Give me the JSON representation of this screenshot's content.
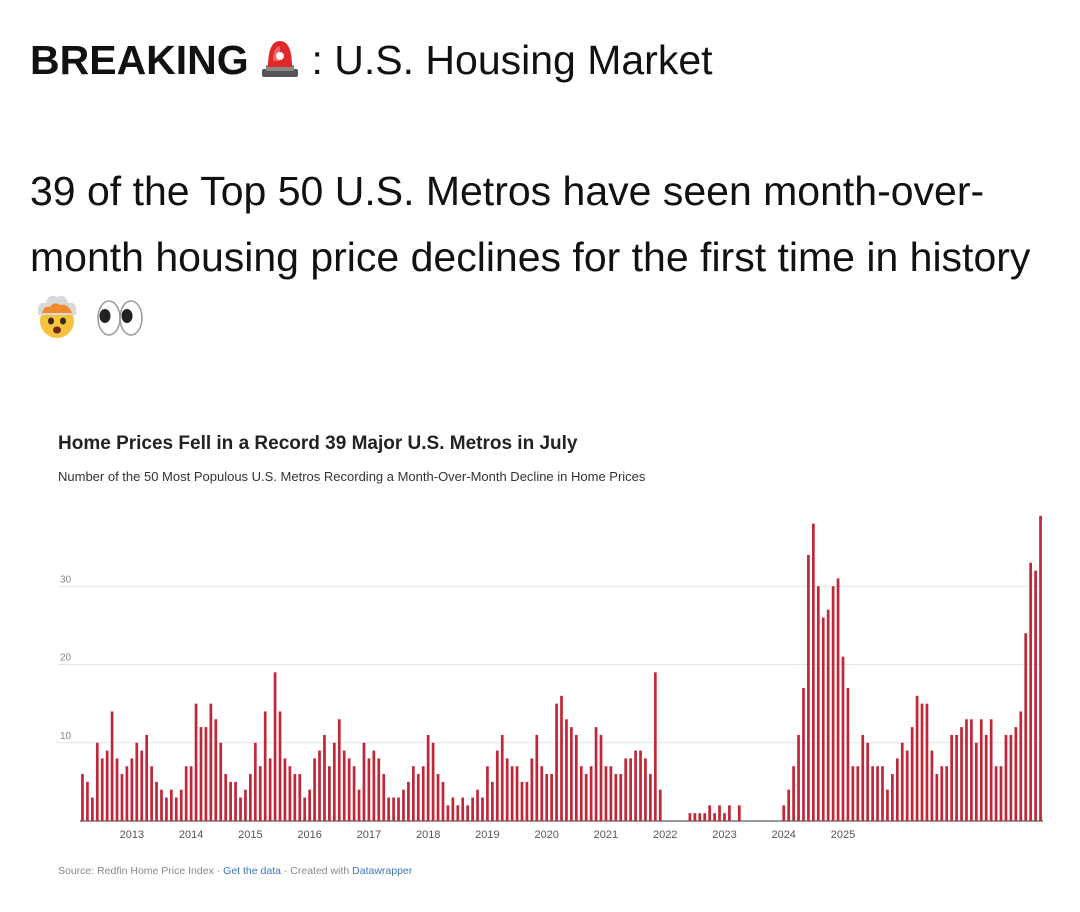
{
  "post": {
    "headline_bold": "BREAKING",
    "headline_icon": "rotating-light-icon",
    "headline_rest": ": U.S. Housing Market",
    "body": "39 of the Top 50 U.S. Metros have seen month-over-month housing price declines for the first time in history",
    "body_icons": [
      "exploding-head-icon",
      "eyes-icon"
    ]
  },
  "chart": {
    "title": "Home Prices Fell in a Record 39 Major U.S. Metros in July",
    "subtitle": "Number of the 50 Most Populous U.S. Metros Recording a Month-Over-Month Decline in Home Prices",
    "source_prefix": "Source: Redfin Home Price Index · ",
    "source_link1": "Get the data",
    "source_mid": " · Created with ",
    "source_link2": "Datawrapper"
  },
  "chart_data": {
    "type": "bar",
    "title": "Home Prices Fell in a Record 39 Major U.S. Metros in July",
    "subtitle": "Number of the 50 Most Populous U.S. Metros Recording a Month-Over-Month Decline in Home Prices",
    "xlabel": "",
    "ylabel": "",
    "ylim": [
      0,
      40
    ],
    "yticks": [
      10,
      20,
      30
    ],
    "x_start": "2012-03",
    "x_end": "2025-07",
    "xtick_labels": [
      "2013",
      "2014",
      "2015",
      "2016",
      "2017",
      "2018",
      "2019",
      "2020",
      "2021",
      "2022",
      "2023",
      "2024",
      "2025"
    ],
    "grid": true,
    "bar_color": "#c0283a",
    "values": [
      6,
      5,
      3,
      10,
      8,
      9,
      14,
      8,
      6,
      7,
      8,
      10,
      9,
      11,
      7,
      5,
      4,
      3,
      4,
      3,
      4,
      7,
      7,
      15,
      12,
      12,
      15,
      13,
      10,
      6,
      5,
      5,
      3,
      4,
      6,
      10,
      7,
      14,
      8,
      19,
      14,
      8,
      7,
      6,
      6,
      3,
      4,
      8,
      9,
      11,
      7,
      10,
      13,
      9,
      8,
      7,
      4,
      10,
      8,
      9,
      8,
      6,
      3,
      3,
      3,
      4,
      5,
      7,
      6,
      7,
      11,
      10,
      6,
      5,
      2,
      3,
      2,
      3,
      2,
      3,
      4,
      3,
      7,
      5,
      9,
      11,
      8,
      7,
      7,
      5,
      5,
      8,
      11,
      7,
      6,
      6,
      15,
      16,
      13,
      12,
      11,
      7,
      6,
      7,
      12,
      11,
      7,
      7,
      6,
      6,
      8,
      8,
      9,
      9,
      8,
      6,
      19,
      4,
      0,
      0,
      0,
      0,
      0,
      1,
      1,
      1,
      1,
      2,
      1,
      2,
      1,
      2,
      0,
      2,
      0,
      0,
      0,
      0,
      0,
      0,
      0,
      0,
      2,
      4,
      7,
      11,
      17,
      34,
      38,
      30,
      26,
      27,
      30,
      31,
      21,
      17,
      7,
      7,
      11,
      10,
      7,
      7,
      7,
      4,
      6,
      8,
      10,
      9,
      12,
      16,
      15,
      15,
      9,
      6,
      7,
      7,
      11,
      11,
      12,
      13,
      13,
      10,
      13,
      11,
      13,
      7,
      7,
      11,
      11,
      12,
      14,
      24,
      33,
      32,
      39
    ]
  }
}
